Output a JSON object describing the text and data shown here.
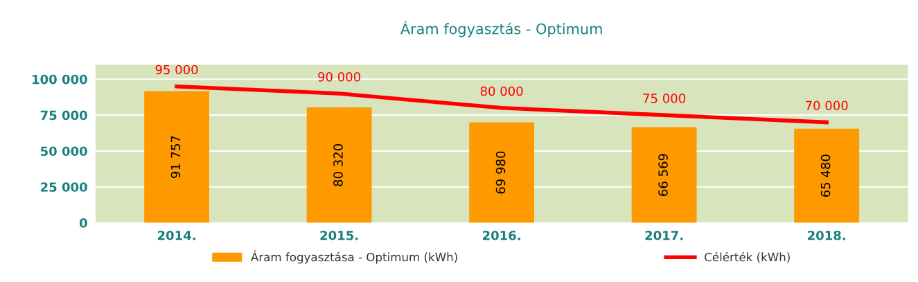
{
  "chart_data": {
    "type": "bar",
    "title": "Áram fogyasztás - Optimum",
    "categories": [
      "2014.",
      "2015.",
      "2016.",
      "2017.",
      "2018."
    ],
    "series": [
      {
        "name": "Áram fogyasztása - Optimum (kWh)",
        "color": "#ff9900",
        "values": [
          91757,
          80320,
          69980,
          66569,
          65480
        ],
        "value_labels": [
          "91 757",
          "80 320",
          "69 980",
          "66 569",
          "65 480"
        ]
      },
      {
        "name": "Célérték (kWh)",
        "type": "line",
        "color": "#ff0000",
        "values": [
          95000,
          90000,
          80000,
          75000,
          70000
        ],
        "value_labels": [
          "95 000",
          "90 000",
          "80 000",
          "75 000",
          "70 000"
        ]
      }
    ],
    "ylim": [
      0,
      110000
    ],
    "yticks": [
      {
        "value": 0,
        "label": "0"
      },
      {
        "value": 25000,
        "label": "25 000"
      },
      {
        "value": 50000,
        "label": "50 000"
      },
      {
        "value": 75000,
        "label": "75 000"
      },
      {
        "value": 100000,
        "label": "100 000"
      }
    ],
    "grid": "y",
    "legend": "bottom",
    "marker": "none",
    "line_style": "solid"
  }
}
